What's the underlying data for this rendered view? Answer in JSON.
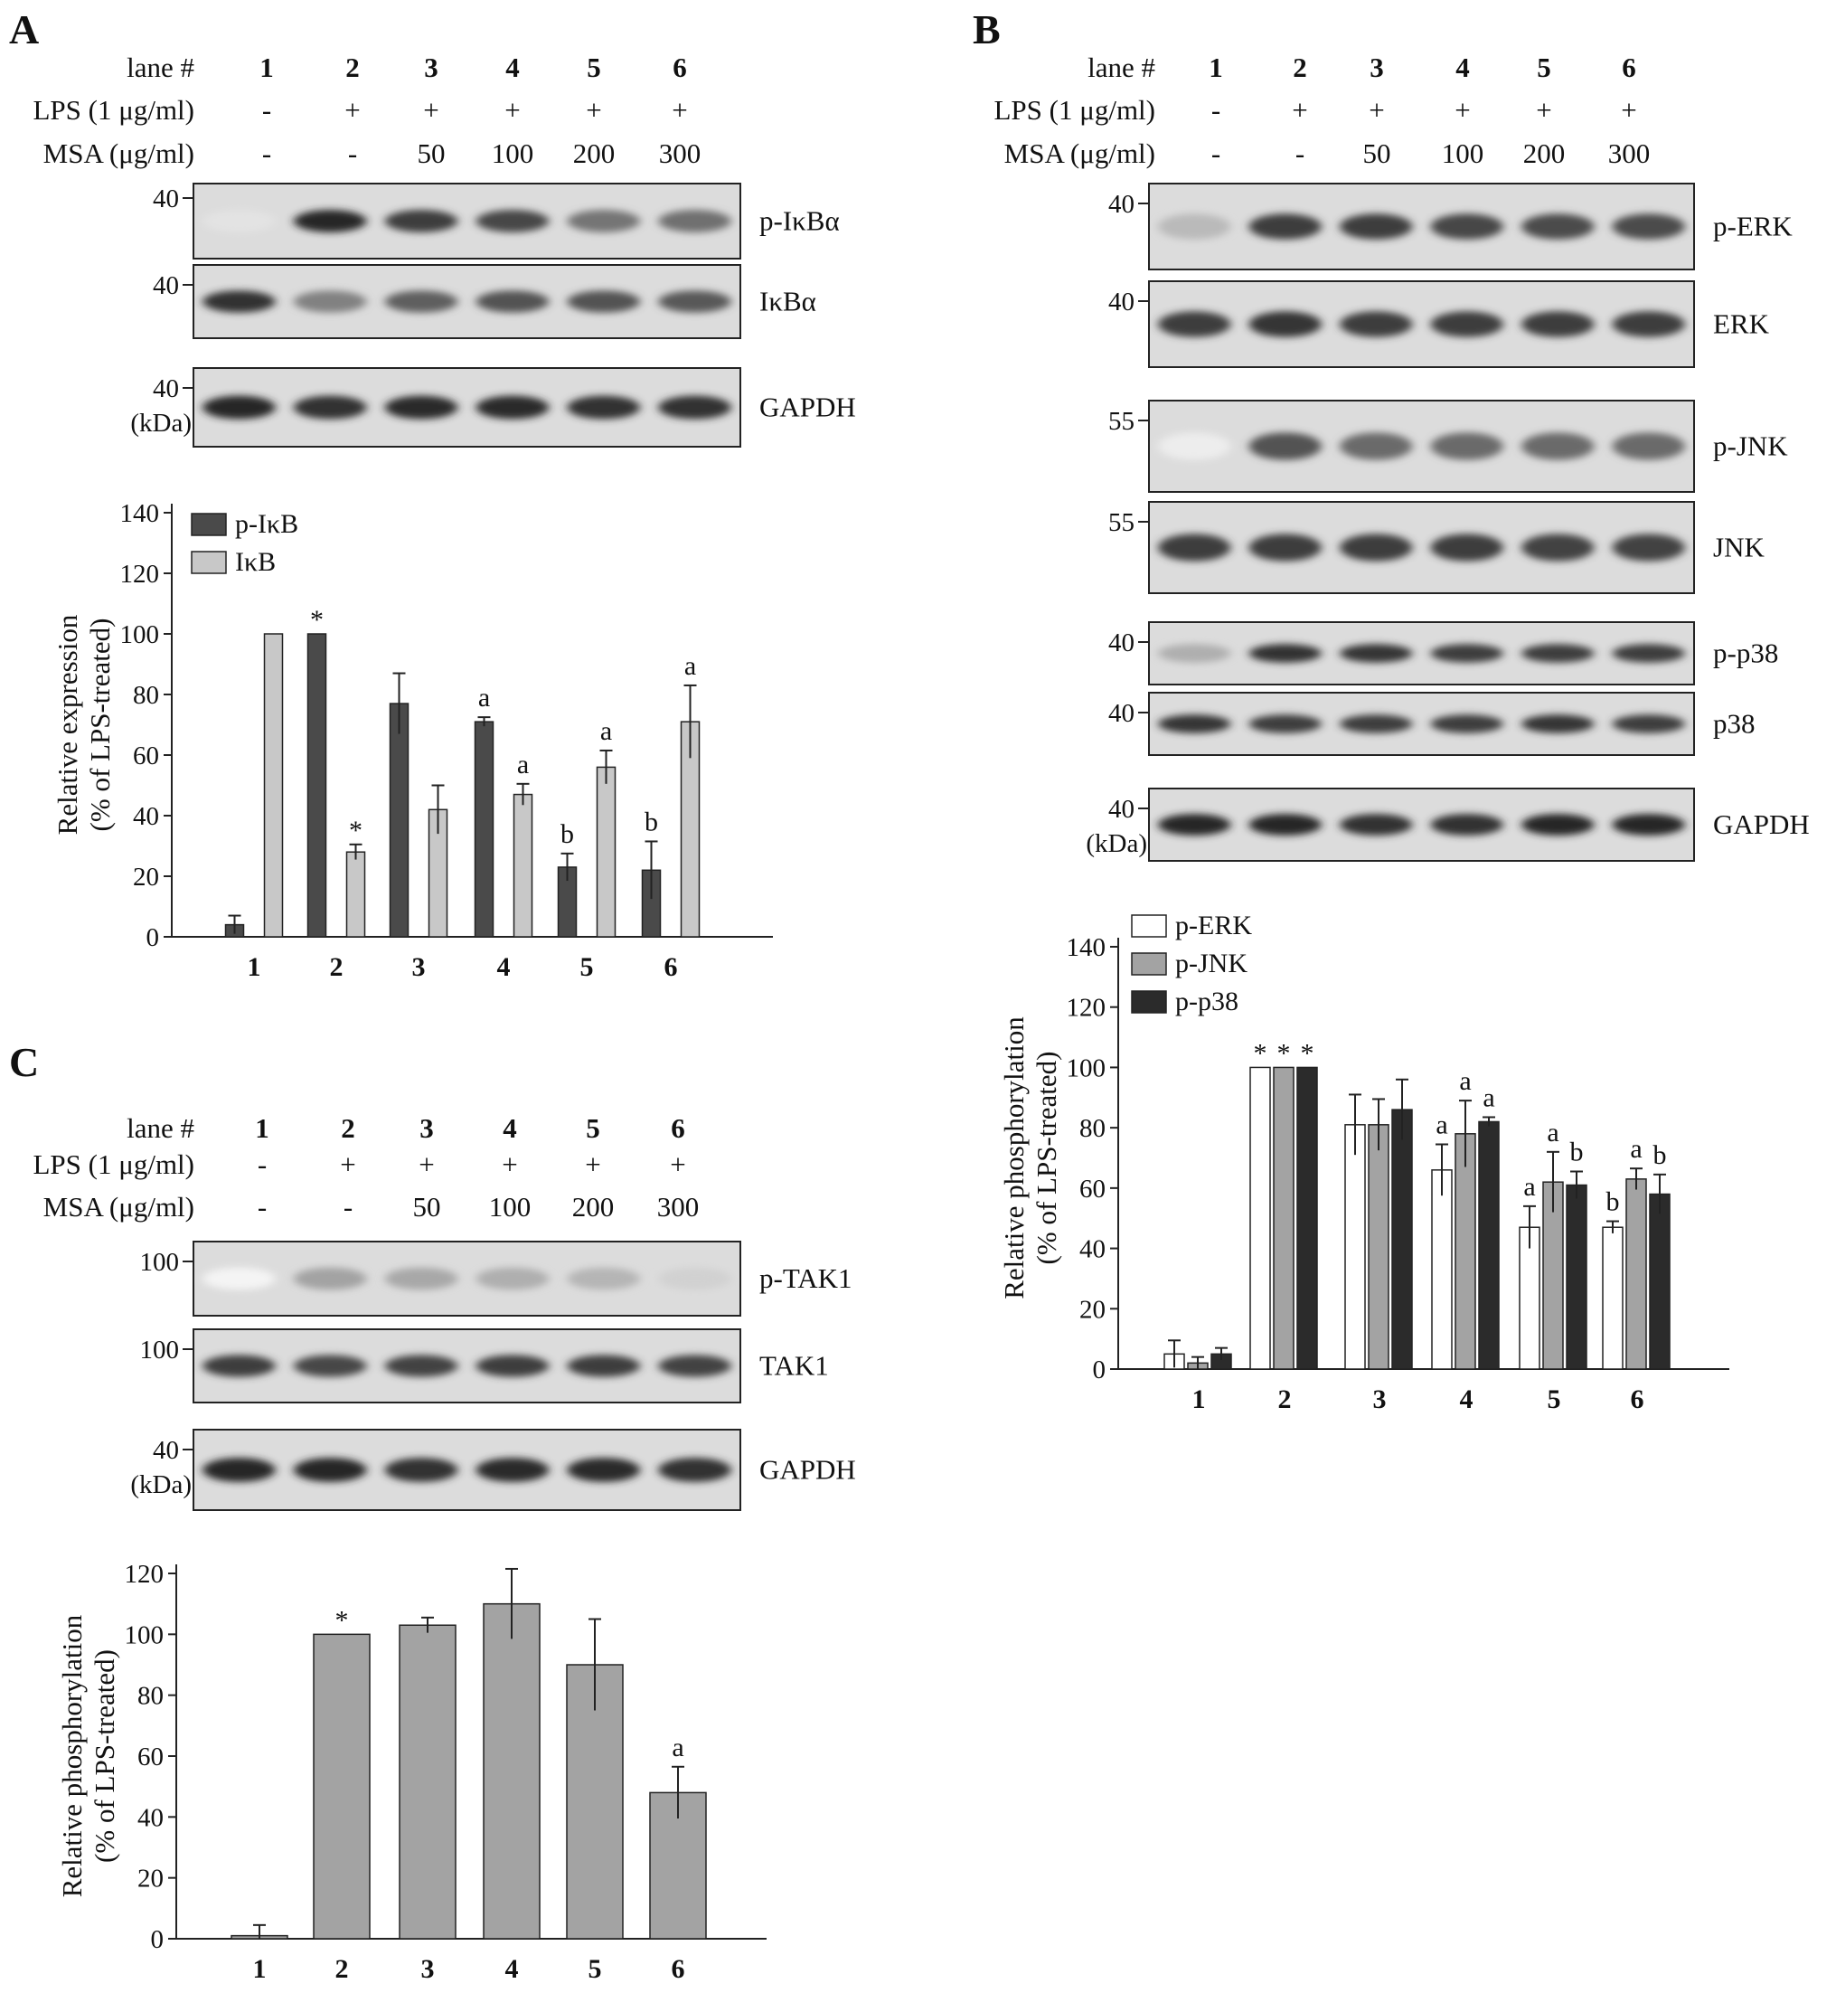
{
  "panels": {
    "A": {
      "letter": "A",
      "header": {
        "lane_label": "lane #",
        "lanes": [
          "1",
          "2",
          "3",
          "4",
          "5",
          "6"
        ],
        "lps_label": "LPS (1 μg/ml)",
        "lps": [
          "-",
          "+",
          "+",
          "+",
          "+",
          "+"
        ],
        "msa_label": "MSA (μg/ml)",
        "msa": [
          "-",
          "-",
          "50",
          "100",
          "200",
          "300"
        ]
      },
      "blots": [
        {
          "label": "p-IκBα",
          "mw": "40",
          "intensity": [
            0.12,
            0.95,
            0.85,
            0.8,
            0.6,
            0.62
          ]
        },
        {
          "label": "IκBα",
          "mw": "40",
          "intensity": [
            0.9,
            0.55,
            0.7,
            0.75,
            0.75,
            0.72
          ]
        },
        {
          "label": "GAPDH",
          "mw": "40",
          "unit": "(kDa)",
          "intensity": [
            0.95,
            0.9,
            0.92,
            0.92,
            0.9,
            0.9
          ]
        }
      ]
    },
    "B": {
      "letter": "B",
      "header": {
        "lane_label": "lane #",
        "lanes": [
          "1",
          "2",
          "3",
          "4",
          "5",
          "6"
        ],
        "lps_label": "LPS (1 μg/ml)",
        "lps": [
          "-",
          "+",
          "+",
          "+",
          "+",
          "+"
        ],
        "msa_label": "MSA (μg/ml)",
        "msa": [
          "-",
          "-",
          "50",
          "100",
          "200",
          "300"
        ]
      },
      "blots": [
        {
          "label": "p-ERK",
          "mw": "40",
          "intensity": [
            0.3,
            0.85,
            0.85,
            0.8,
            0.78,
            0.78
          ]
        },
        {
          "label": "ERK",
          "mw": "40",
          "intensity": [
            0.85,
            0.88,
            0.85,
            0.85,
            0.85,
            0.85
          ]
        },
        {
          "label": "p-JNK",
          "mw": "55",
          "intensity": [
            0.08,
            0.75,
            0.65,
            0.65,
            0.65,
            0.65
          ]
        },
        {
          "label": "JNK",
          "mw": "55",
          "intensity": [
            0.85,
            0.85,
            0.85,
            0.85,
            0.82,
            0.82
          ]
        },
        {
          "label": "p-p38",
          "mw": "40",
          "intensity": [
            0.35,
            0.9,
            0.88,
            0.85,
            0.85,
            0.85
          ]
        },
        {
          "label": "p38",
          "mw": "40",
          "intensity": [
            0.88,
            0.85,
            0.85,
            0.85,
            0.88,
            0.85
          ]
        },
        {
          "label": "GAPDH",
          "mw": "40",
          "unit": "(kDa)",
          "intensity": [
            0.95,
            0.95,
            0.9,
            0.9,
            0.95,
            0.95
          ]
        }
      ]
    },
    "C": {
      "letter": "C",
      "header": {
        "lane_label": "lane #",
        "lanes": [
          "1",
          "2",
          "3",
          "4",
          "5",
          "6"
        ],
        "lps_label": "LPS (1 μg/ml)",
        "lps": [
          "-",
          "+",
          "+",
          "+",
          "+",
          "+"
        ],
        "msa_label": "MSA (μg/ml)",
        "msa": [
          "-",
          "-",
          "50",
          "100",
          "200",
          "300"
        ]
      },
      "blots": [
        {
          "label": "p-TAK1",
          "mw": "100",
          "intensity": [
            0.05,
            0.4,
            0.38,
            0.35,
            0.32,
            0.2
          ]
        },
        {
          "label": "TAK1",
          "mw": "100",
          "intensity": [
            0.85,
            0.8,
            0.82,
            0.85,
            0.85,
            0.82
          ]
        },
        {
          "label": "GAPDH",
          "mw": "40",
          "unit": "(kDa)",
          "intensity": [
            0.95,
            0.95,
            0.9,
            0.92,
            0.92,
            0.9
          ]
        }
      ]
    }
  },
  "colors": {
    "dark_bar": "#4a4a4a",
    "light_bar": "#c8c8c8",
    "mid_bar": "#a3a3a3",
    "black_bar": "#2b2b2b",
    "white_bar": "#ffffff",
    "blot_bg": "#dcdcdc"
  },
  "chart_data": [
    {
      "id": "A",
      "type": "bar",
      "categories": [
        "1",
        "2",
        "3",
        "4",
        "5",
        "6"
      ],
      "ylabel": "Relative expression",
      "ylabel2": "(% of LPS-treated)",
      "ylim": [
        0,
        140
      ],
      "yticks": [
        0,
        20,
        40,
        60,
        80,
        100,
        120,
        140
      ],
      "legend_position": "top-left",
      "series": [
        {
          "name": "p-IκB",
          "color": "#4a4a4a",
          "values": [
            4,
            100,
            77,
            71,
            23,
            22
          ],
          "errors": [
            3,
            0,
            10,
            1.5,
            4.5,
            9.5
          ],
          "annotations": [
            "",
            "*",
            "",
            "a",
            "b",
            "b"
          ]
        },
        {
          "name": "IκB",
          "color": "#c8c8c8",
          "values": [
            100,
            28,
            42,
            47,
            56,
            71
          ],
          "errors": [
            0,
            2.5,
            8,
            3.5,
            5.5,
            12
          ],
          "annotations": [
            "",
            "*",
            "",
            "a",
            "a",
            "a"
          ]
        }
      ]
    },
    {
      "id": "B",
      "type": "bar",
      "categories": [
        "1",
        "2",
        "3",
        "4",
        "5",
        "6"
      ],
      "ylabel": "Relative phosphorylation",
      "ylabel2": "(% of LPS-treated)",
      "ylim": [
        0,
        140
      ],
      "yticks": [
        0,
        20,
        40,
        60,
        80,
        100,
        120,
        140
      ],
      "legend_position": "top-left",
      "series": [
        {
          "name": "p-ERK",
          "color": "#ffffff",
          "values": [
            5,
            100,
            81,
            66,
            47,
            47
          ],
          "errors": [
            4.5,
            0,
            10,
            8.5,
            7,
            2
          ],
          "annotations": [
            "",
            "*",
            "",
            "a",
            "a",
            "b"
          ]
        },
        {
          "name": "p-JNK",
          "color": "#a3a3a3",
          "values": [
            2,
            100,
            81,
            78,
            62,
            63
          ],
          "errors": [
            2,
            0,
            8.5,
            11,
            10,
            3.5
          ],
          "annotations": [
            "",
            "*",
            "",
            "a",
            "a",
            "a"
          ]
        },
        {
          "name": "p-p38",
          "color": "#2b2b2b",
          "values": [
            5,
            100,
            86,
            82,
            61,
            58
          ],
          "errors": [
            2,
            0,
            10,
            1.5,
            4.5,
            6.5
          ],
          "annotations": [
            "",
            "*",
            "",
            "a",
            "b",
            "b"
          ]
        }
      ]
    },
    {
      "id": "C",
      "type": "bar",
      "categories": [
        "1",
        "2",
        "3",
        "4",
        "5",
        "6"
      ],
      "ylabel": "Relative phosphorylation",
      "ylabel2": "(% of LPS-treated)",
      "ylim": [
        0,
        120
      ],
      "yticks": [
        0,
        20,
        40,
        60,
        80,
        100,
        120
      ],
      "series": [
        {
          "color": "#a3a3a3",
          "values": [
            1,
            100,
            103,
            110,
            90,
            48
          ],
          "errors": [
            3.5,
            0,
            2.5,
            11.5,
            15,
            8.5
          ],
          "annotations": [
            "",
            "*",
            "",
            "",
            "",
            "a"
          ]
        }
      ]
    }
  ]
}
